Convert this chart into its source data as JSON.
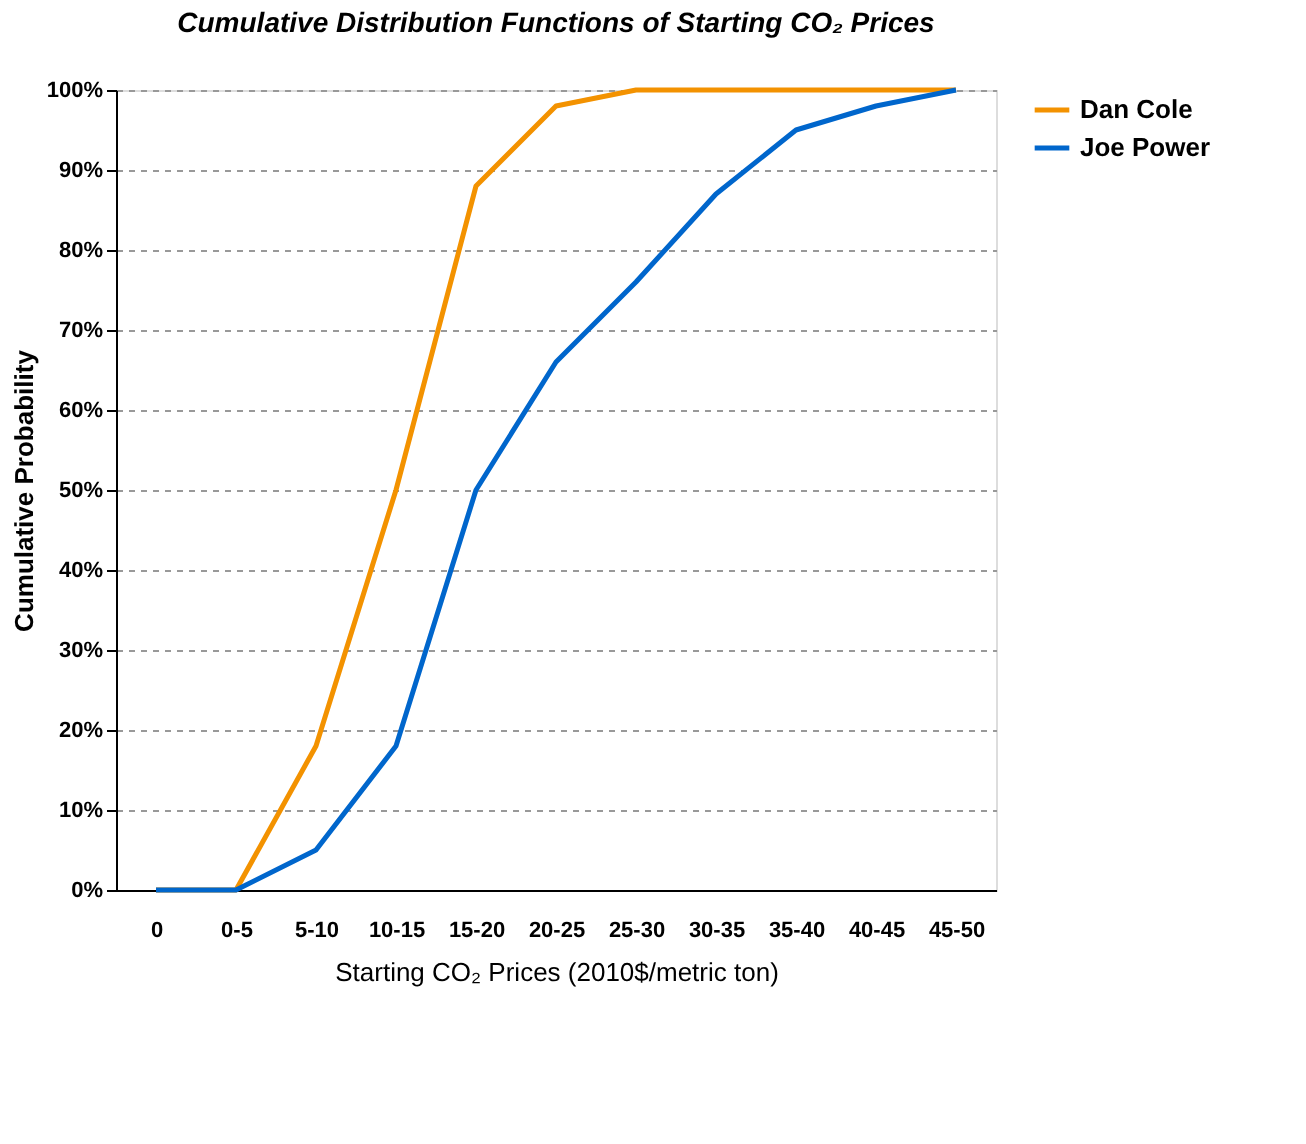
{
  "chart_data": {
    "type": "line",
    "title": "Cumulative Distribution Functions of Starting CO₂ Prices",
    "xlabel": "Starting CO₂ Prices (2010$/metric ton)",
    "ylabel": "Cumulative Probability",
    "categories": [
      "0",
      "0-5",
      "5-10",
      "10-15",
      "15-20",
      "20-25",
      "25-30",
      "30-35",
      "35-40",
      "40-45",
      "45-50"
    ],
    "series": [
      {
        "name": "Dan Cole",
        "color": "#f39200",
        "values": [
          0,
          0,
          18,
          50,
          88,
          98,
          100,
          100,
          100,
          100,
          100
        ]
      },
      {
        "name": "Joe Power",
        "color": "#0066cc",
        "values": [
          0,
          0,
          5,
          18,
          50,
          66,
          76,
          87,
          95,
          98,
          100
        ]
      }
    ],
    "ylim": [
      0,
      100
    ],
    "yticks": [
      {
        "value": 0,
        "label": "0%"
      },
      {
        "value": 10,
        "label": "10%"
      },
      {
        "value": 20,
        "label": "20%"
      },
      {
        "value": 30,
        "label": "30%"
      },
      {
        "value": 40,
        "label": "40%"
      },
      {
        "value": 50,
        "label": "50%"
      },
      {
        "value": 60,
        "label": "60%"
      },
      {
        "value": 70,
        "label": "70%"
      },
      {
        "value": 80,
        "label": "80%"
      },
      {
        "value": 90,
        "label": "90%"
      },
      {
        "value": 100,
        "label": "100%"
      }
    ],
    "grid": "y",
    "legend": "right",
    "marker": "none",
    "line_style": "solid"
  }
}
